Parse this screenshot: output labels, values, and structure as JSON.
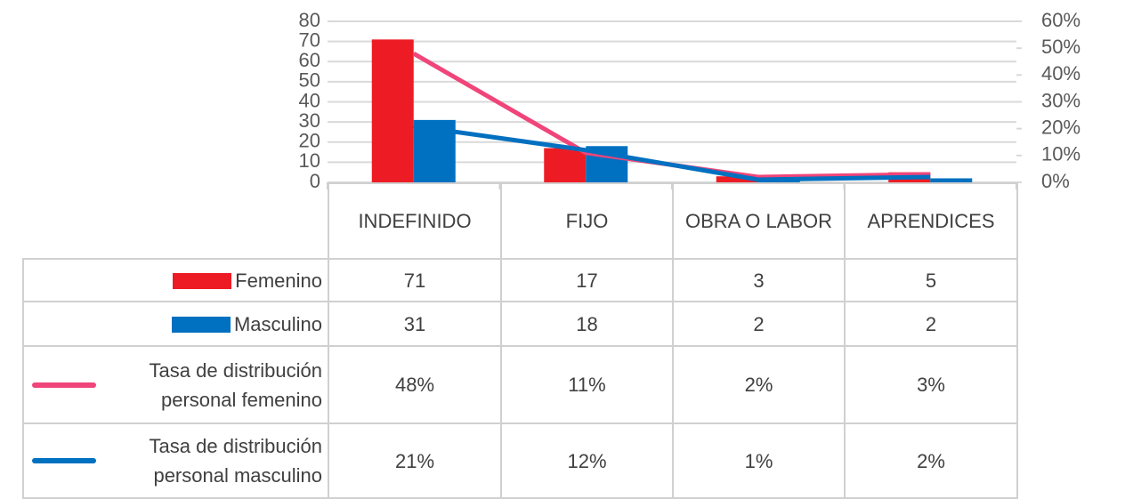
{
  "chart_data": {
    "type": "bar_line",
    "categories": [
      "INDEFINIDO",
      "FIJO",
      "OBRA O LABOR",
      "APRENDICES"
    ],
    "series": [
      {
        "name": "Femenino",
        "type": "bar",
        "color": "#ed1c24",
        "values": [
          71,
          17,
          3,
          5
        ]
      },
      {
        "name": "Masculino",
        "type": "bar",
        "color": "#0070c0",
        "values": [
          31,
          18,
          2,
          2
        ]
      },
      {
        "name": "Tasa de distribución personal femenino",
        "type": "line",
        "axis": "y2",
        "color": "#f0457a",
        "values": [
          48,
          11,
          2,
          3
        ],
        "value_labels": [
          "48%",
          "11%",
          "2%",
          "3%"
        ]
      },
      {
        "name": "Tasa de distribución personal masculino",
        "type": "line",
        "axis": "y2",
        "color": "#0070c0",
        "values": [
          21,
          12,
          1,
          2
        ],
        "value_labels": [
          "21%",
          "12%",
          "1%",
          "2%"
        ]
      }
    ],
    "ylim": [
      0,
      80
    ],
    "yticks": [
      0,
      10,
      20,
      30,
      40,
      50,
      60,
      70,
      80
    ],
    "y2lim": [
      0,
      60
    ],
    "y2ticks": [
      {
        "value": 0,
        "label": "0%"
      },
      {
        "value": 10,
        "label": "10%"
      },
      {
        "value": 20,
        "label": "20%"
      },
      {
        "value": 30,
        "label": "30%"
      },
      {
        "value": 40,
        "label": "40%"
      },
      {
        "value": 50,
        "label": "50%"
      },
      {
        "value": 60,
        "label": "60%"
      }
    ],
    "grid": true
  }
}
